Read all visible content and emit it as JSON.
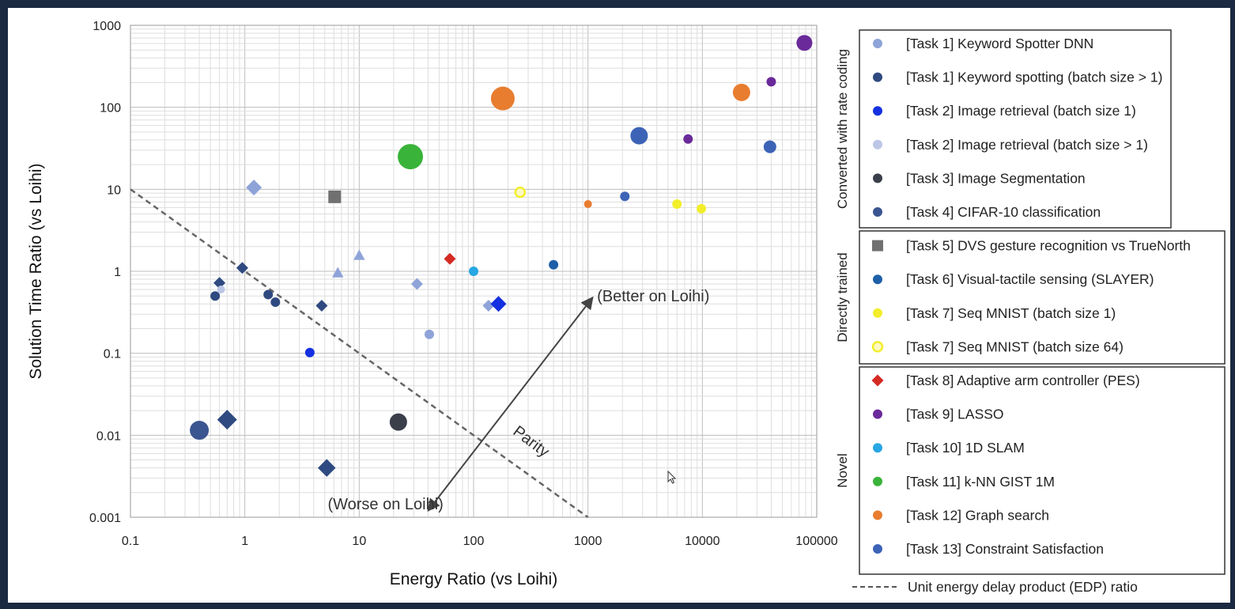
{
  "chart_data": {
    "type": "scatter",
    "title": "",
    "xlabel": "Energy Ratio (vs Loihi)",
    "ylabel": "Solution Time Ratio (vs Loihi)",
    "xscale": "log",
    "yscale": "log",
    "xlim": [
      0.1,
      100000
    ],
    "ylim": [
      0.001,
      1000
    ],
    "x_ticks": [
      "0.1",
      "1",
      "10",
      "100",
      "1000",
      "10000",
      "100000"
    ],
    "y_ticks": [
      "0.001",
      "0.01",
      "0.1",
      "1",
      "10",
      "100",
      "1000"
    ],
    "grid": true,
    "legend_position": "right",
    "groups": [
      {
        "label": "Converted with rate coding",
        "series": [
          0,
          1,
          2,
          3,
          4,
          5
        ]
      },
      {
        "label": "Directly trained",
        "series": [
          6,
          7,
          8,
          9
        ]
      },
      {
        "label": "Novel",
        "series": [
          10,
          11,
          12,
          13,
          14,
          15
        ]
      }
    ],
    "series": [
      {
        "name": "[Task 1] Keyword Spotter DNN",
        "color": "#8ea3d8",
        "marker": "circle",
        "points": [
          {
            "shape": "diamond",
            "x": 1.2,
            "y": 10.5,
            "size": 8
          },
          {
            "shape": "triangle",
            "x": 6.5,
            "y": 0.95,
            "size": 6
          },
          {
            "shape": "triangle",
            "x": 10,
            "y": 1.55,
            "size": 6
          },
          {
            "shape": "diamond",
            "x": 32,
            "y": 0.7,
            "size": 6
          },
          {
            "shape": "circle",
            "x": 41,
            "y": 0.17,
            "size": 6
          },
          {
            "shape": "diamond",
            "x": 135,
            "y": 0.38,
            "size": 6
          }
        ]
      },
      {
        "name": "[Task 1] Keyword spotting (batch size > 1)",
        "color": "#2f4a80",
        "marker": "circle",
        "points": [
          {
            "shape": "diamond",
            "x": 0.6,
            "y": 0.72,
            "size": 6
          },
          {
            "shape": "circle",
            "x": 0.55,
            "y": 0.5,
            "size": 6
          },
          {
            "shape": "diamond",
            "x": 0.95,
            "y": 1.1,
            "size": 6
          },
          {
            "shape": "circle",
            "x": 1.6,
            "y": 0.52,
            "size": 6
          },
          {
            "shape": "circle",
            "x": 1.85,
            "y": 0.42,
            "size": 6
          },
          {
            "shape": "diamond",
            "x": 4.7,
            "y": 0.38,
            "size": 6
          },
          {
            "shape": "diamond",
            "x": 0.7,
            "y": 0.0155,
            "size": 10
          },
          {
            "shape": "diamond",
            "x": 5.2,
            "y": 0.004,
            "size": 9
          }
        ]
      },
      {
        "name": "[Task 2] Image retrieval (batch size 1)",
        "color": "#1530e0",
        "marker": "circle",
        "points": [
          {
            "shape": "circle",
            "x": 3.7,
            "y": 0.102,
            "size": 6
          },
          {
            "shape": "diamond",
            "x": 165,
            "y": 0.4,
            "size": 8
          }
        ]
      },
      {
        "name": "[Task 2] Image retrieval (batch size > 1)",
        "color": "#bcc6e6",
        "marker": "circle",
        "points": [
          {
            "shape": "circle",
            "x": 0.62,
            "y": 0.6,
            "size": 5
          }
        ]
      },
      {
        "name": "[Task 3] Image Segmentation",
        "color": "#3a3f4a",
        "marker": "circle",
        "points": [
          {
            "shape": "circle",
            "x": 22,
            "y": 0.0145,
            "size": 11
          }
        ]
      },
      {
        "name": "[Task 4] CIFAR-10 classification",
        "color": "#3b5590",
        "marker": "circle",
        "points": [
          {
            "shape": "circle",
            "x": 0.4,
            "y": 0.0115,
            "size": 12
          }
        ]
      },
      {
        "name": "[Task 5] DVS gesture recognition vs TrueNorth",
        "color": "#707070",
        "marker": "square",
        "points": [
          {
            "shape": "square",
            "x": 6.1,
            "y": 8.1,
            "size": 8
          }
        ]
      },
      {
        "name": "[Task 6] Visual-tactile sensing (SLAYER)",
        "color": "#1e5fa8",
        "marker": "circle",
        "points": [
          {
            "shape": "circle",
            "x": 500,
            "y": 1.2,
            "size": 6
          }
        ]
      },
      {
        "name": "[Task 7] Seq MNIST (batch size 1)",
        "color": "#f2ee2a",
        "marker": "circle",
        "points": [
          {
            "shape": "circle",
            "x": 6000,
            "y": 6.6,
            "size": 6
          },
          {
            "shape": "circle",
            "x": 9800,
            "y": 5.8,
            "size": 6
          }
        ]
      },
      {
        "name": "[Task 7] Seq MNIST (batch size 64)",
        "color": "#f2ee2a",
        "marker": "ring",
        "points": [
          {
            "shape": "ring",
            "x": 255,
            "y": 9.2,
            "size": 6
          }
        ]
      },
      {
        "name": "[Task 8] Adaptive arm controller (PES)",
        "color": "#d42a22",
        "marker": "diamond",
        "points": [
          {
            "shape": "diamond",
            "x": 62,
            "y": 1.42,
            "size": 6
          }
        ]
      },
      {
        "name": "[Task 9] LASSO",
        "color": "#6a2a9a",
        "marker": "circle",
        "points": [
          {
            "shape": "circle",
            "x": 78000,
            "y": 610,
            "size": 10
          },
          {
            "shape": "circle",
            "x": 40000,
            "y": 205,
            "size": 6
          },
          {
            "shape": "circle",
            "x": 7500,
            "y": 41,
            "size": 6
          }
        ]
      },
      {
        "name": "[Task 10] 1D SLAM",
        "color": "#27a7e3",
        "marker": "circle",
        "points": [
          {
            "shape": "circle",
            "x": 100,
            "y": 1.0,
            "size": 6
          }
        ]
      },
      {
        "name": "[Task 11] k-NN GIST 1M",
        "color": "#3ab33a",
        "marker": "circle",
        "points": [
          {
            "shape": "circle",
            "x": 28,
            "y": 25,
            "size": 16
          }
        ]
      },
      {
        "name": "[Task 12] Graph search",
        "color": "#e87d2f",
        "marker": "circle",
        "points": [
          {
            "shape": "circle",
            "x": 180,
            "y": 128,
            "size": 15
          },
          {
            "shape": "circle",
            "x": 22000,
            "y": 152,
            "size": 11
          },
          {
            "shape": "circle",
            "x": 1000,
            "y": 6.6,
            "size": 5
          }
        ]
      },
      {
        "name": "[Task 13] Constraint Satisfaction",
        "color": "#3c63b6",
        "marker": "circle",
        "points": [
          {
            "shape": "circle",
            "x": 2800,
            "y": 45,
            "size": 11
          },
          {
            "shape": "circle",
            "x": 39000,
            "y": 33,
            "size": 8
          },
          {
            "shape": "circle",
            "x": 2100,
            "y": 8.2,
            "size": 6
          }
        ]
      }
    ],
    "parity_line": {
      "label": "Parity",
      "from": [
        0.1,
        10
      ],
      "to": [
        1000,
        0.001
      ]
    },
    "arrow": {
      "from": [
        40,
        0.0012
      ],
      "to": [
        1100,
        0.48
      ]
    },
    "annotations": [
      {
        "text": "(Better on Loihi)",
        "x": 1200,
        "y": 0.43
      },
      {
        "text": "(Worse on Loihi)",
        "x": 5.3,
        "y": 0.00125
      }
    ],
    "footnote": "Unit energy delay product (EDP) ratio"
  }
}
